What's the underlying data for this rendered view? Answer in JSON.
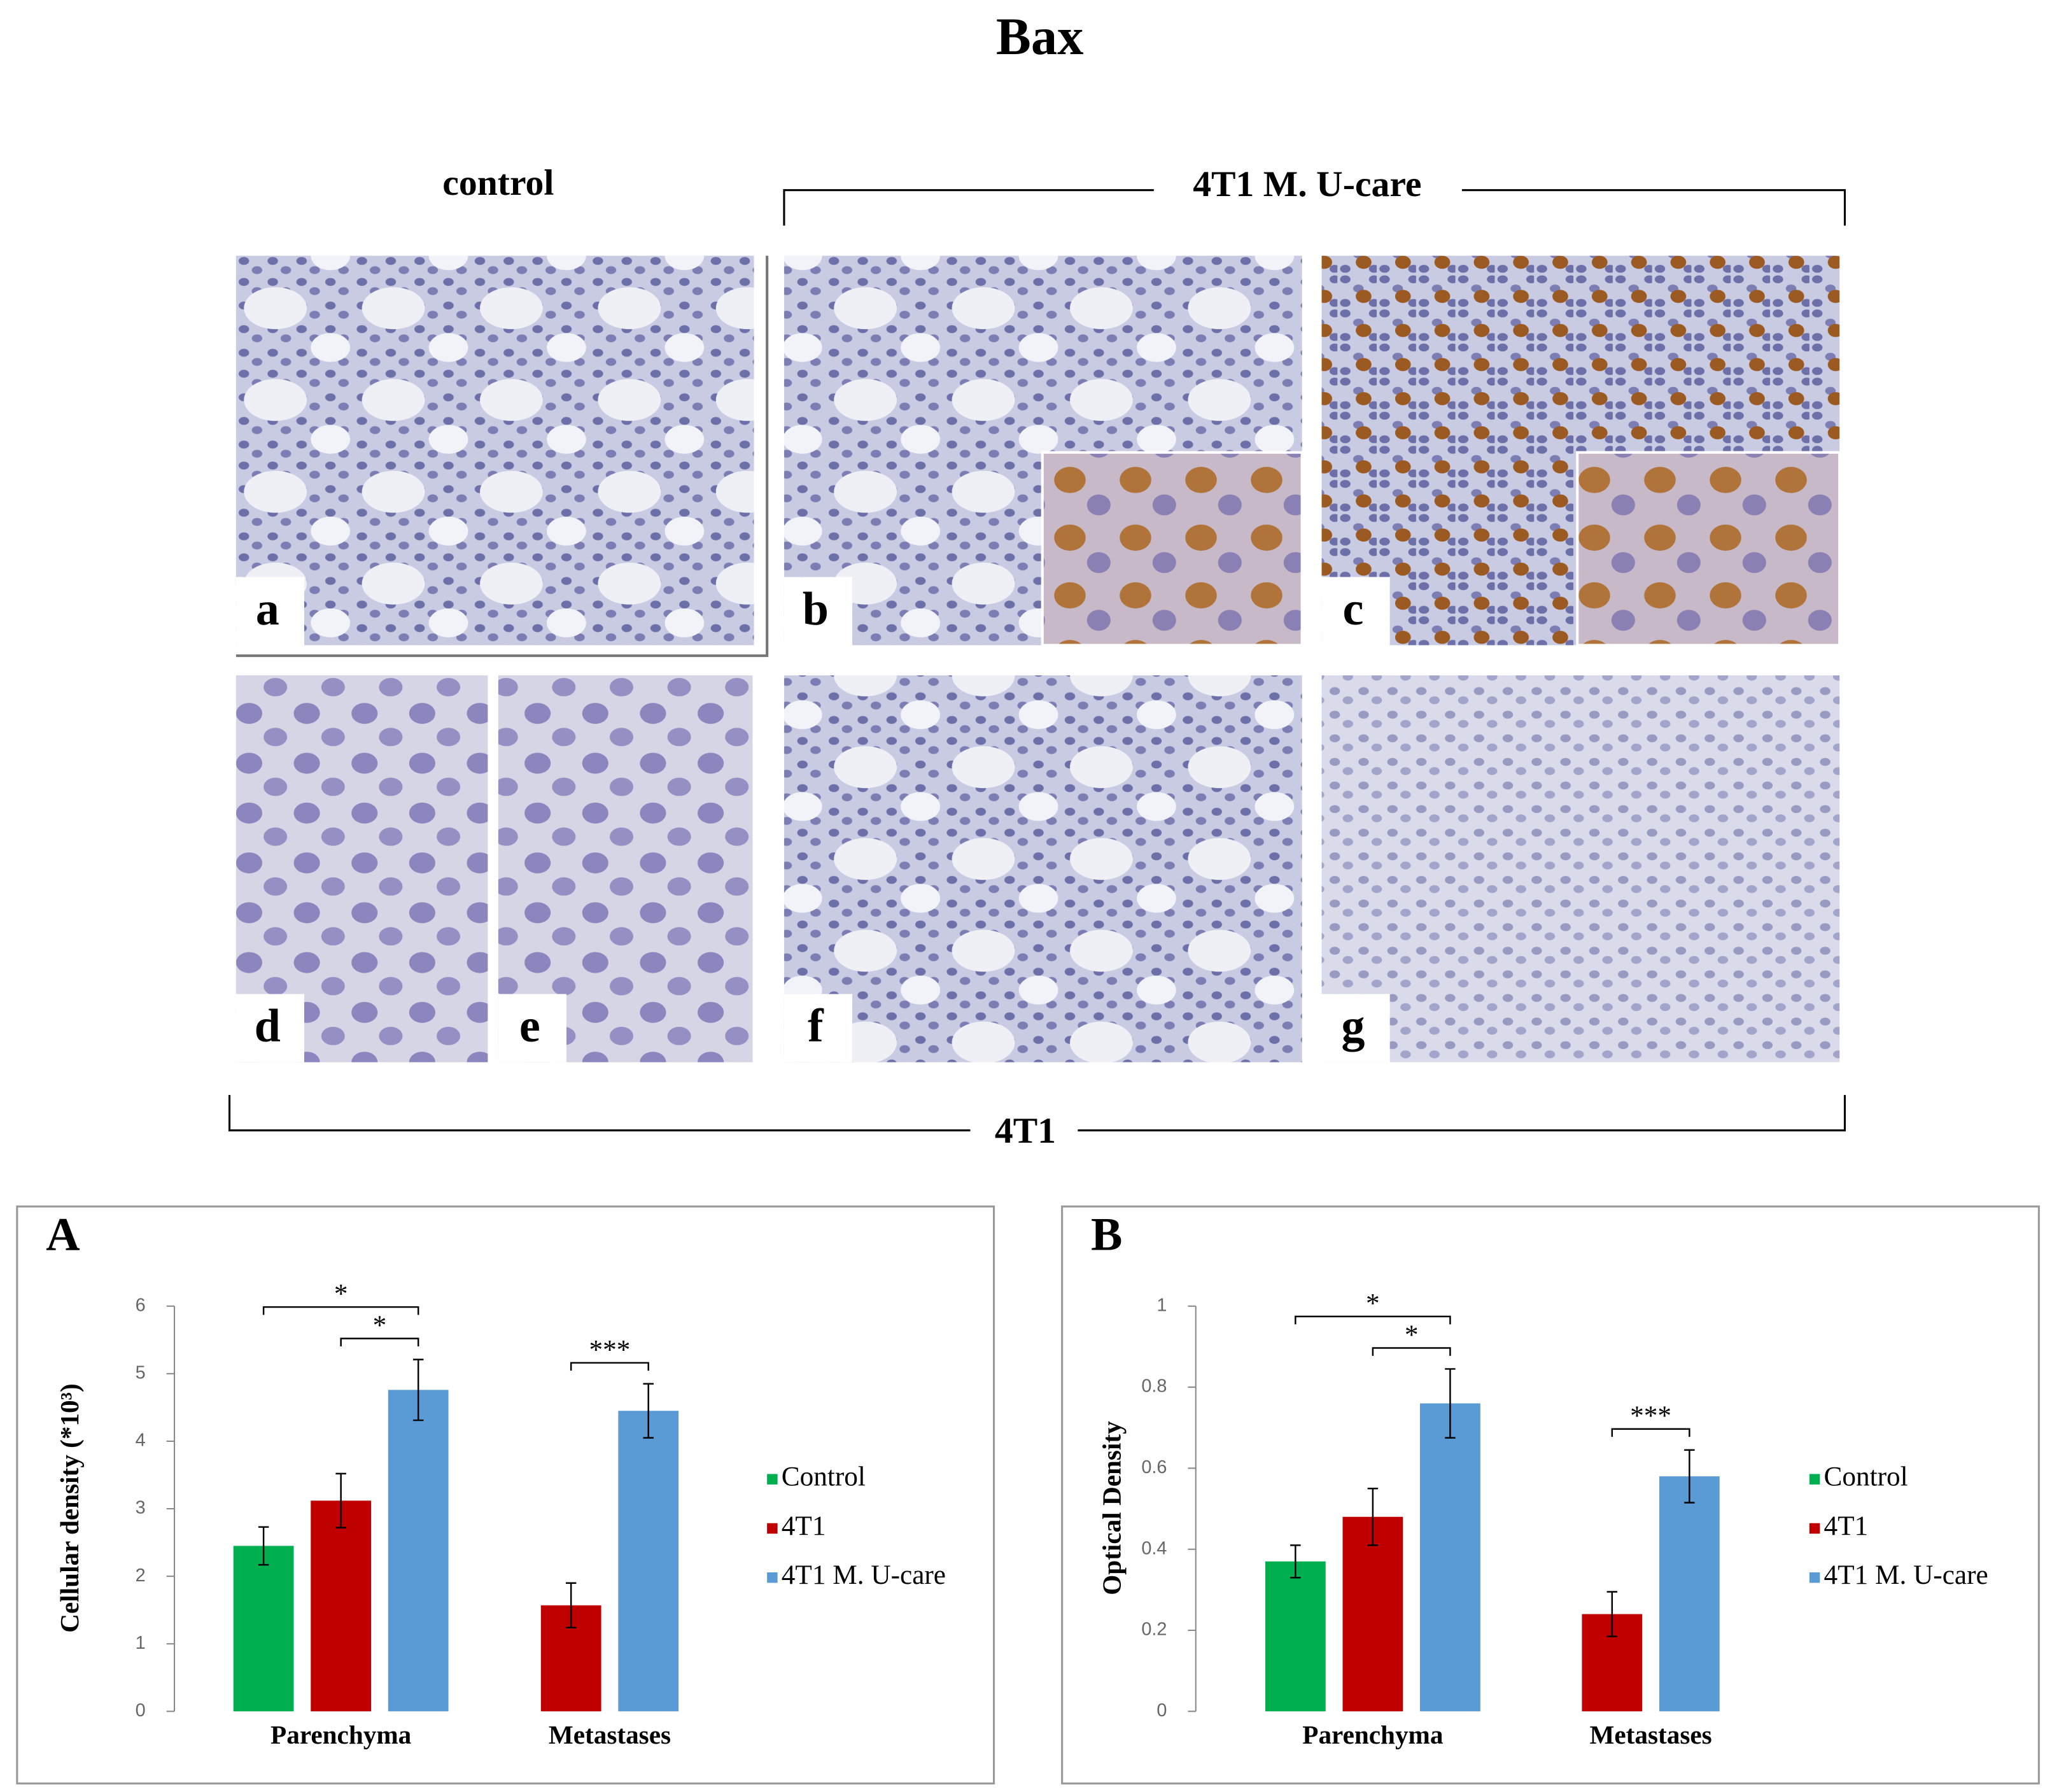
{
  "figure": {
    "title": "Bax",
    "control_label": "control",
    "treated_label": "4T1 M. U-care",
    "model_label": "4T1",
    "panels": [
      "a",
      "b",
      "c",
      "d",
      "e",
      "f",
      "g"
    ]
  },
  "chart_data": [
    {
      "type": "bar",
      "panel": "A",
      "ylabel": "Cellular density (*10³)",
      "categories": [
        "Parenchyma",
        "Metastases"
      ],
      "series": [
        {
          "name": "Control",
          "color": "#00b050",
          "values": [
            2.45,
            null
          ],
          "errors": [
            0.28,
            null
          ]
        },
        {
          "name": "4T1",
          "color": "#c00000",
          "values": [
            3.12,
            1.57
          ],
          "errors": [
            0.4,
            0.33
          ]
        },
        {
          "name": "4T1 M. U-care",
          "color": "#5b9bd5",
          "values": [
            4.76,
            4.45
          ],
          "errors": [
            0.45,
            0.4
          ]
        }
      ],
      "ylim": [
        0,
        6
      ],
      "yticks": [
        0,
        1,
        2,
        3,
        4,
        5,
        6
      ],
      "legend": "right",
      "annotations": [
        {
          "text": "*",
          "category": "Parenchyma",
          "between": [
            "4T1",
            "4T1 M. U-care"
          ]
        },
        {
          "text": "*",
          "category": "Parenchyma",
          "between": [
            "Control",
            "4T1 M. U-care"
          ]
        },
        {
          "text": "***",
          "category": "Metastases",
          "between": [
            "4T1",
            "4T1 M. U-care"
          ]
        }
      ]
    },
    {
      "type": "bar",
      "panel": "B",
      "ylabel": "Optical Density",
      "categories": [
        "Parenchyma",
        "Metastases"
      ],
      "series": [
        {
          "name": "Control",
          "color": "#00b050",
          "values": [
            0.37,
            null
          ],
          "errors": [
            0.04,
            null
          ]
        },
        {
          "name": "4T1",
          "color": "#c00000",
          "values": [
            0.48,
            0.24
          ],
          "errors": [
            0.07,
            0.055
          ]
        },
        {
          "name": "4T1 M. U-care",
          "color": "#5b9bd5",
          "values": [
            0.76,
            0.58
          ],
          "errors": [
            0.085,
            0.065
          ]
        }
      ],
      "ylim": [
        0,
        1
      ],
      "yticks": [
        0,
        0.2,
        0.4,
        0.6,
        0.8,
        1
      ],
      "legend": "right",
      "annotations": [
        {
          "text": "*",
          "category": "Parenchyma",
          "between": [
            "4T1",
            "4T1 M. U-care"
          ]
        },
        {
          "text": "*",
          "category": "Parenchyma",
          "between": [
            "Control",
            "4T1 M. U-care"
          ]
        },
        {
          "text": "***",
          "category": "Metastases",
          "between": [
            "4T1",
            "4T1 M. U-care"
          ]
        }
      ]
    }
  ]
}
